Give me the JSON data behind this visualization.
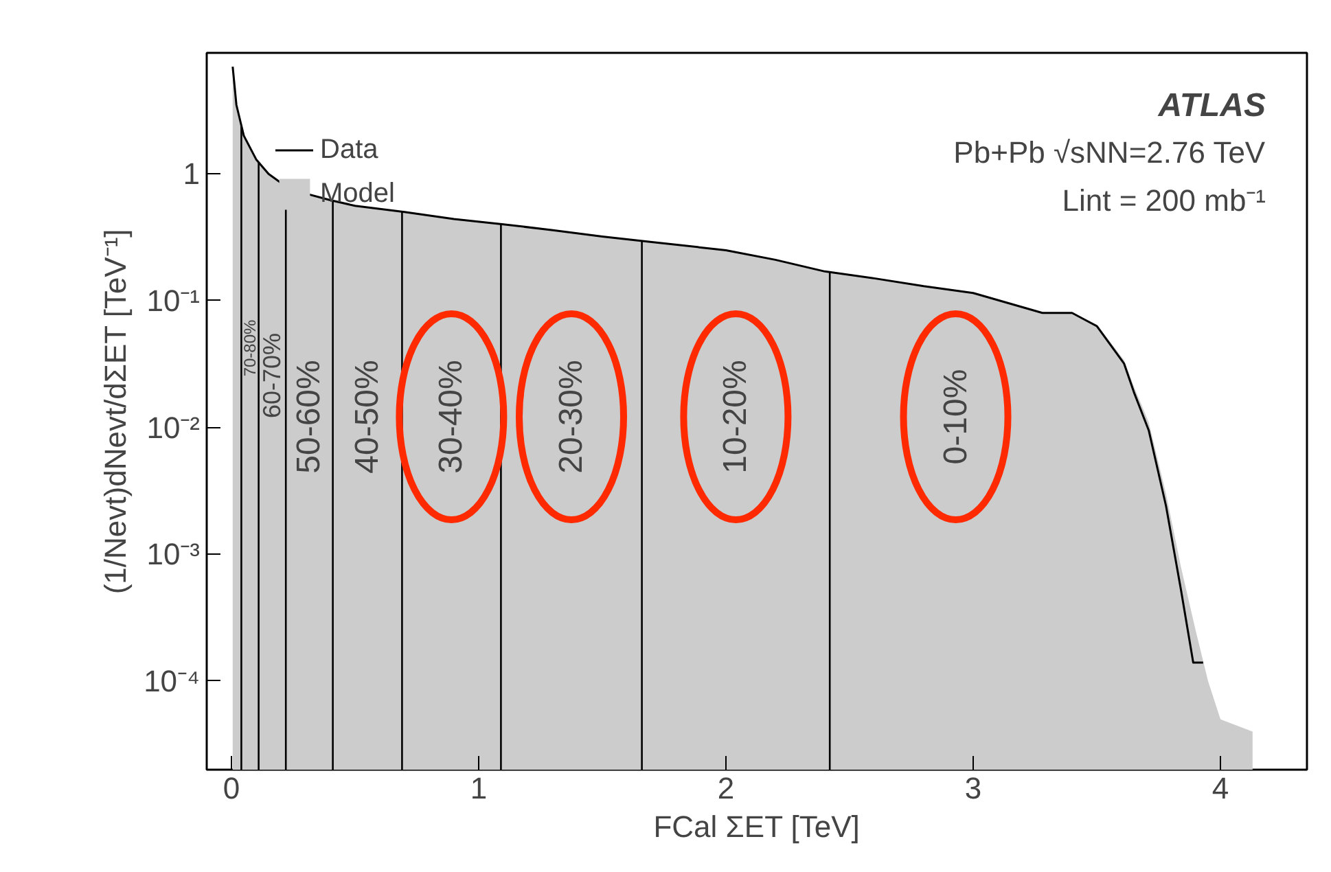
{
  "chart_data": {
    "type": "line",
    "xlabel": "FCal ΣET [TeV]",
    "ylabel": "(1/Nevt)dNevt/dΣET [TeV⁻¹]",
    "log": "y",
    "xlim": [
      -0.1,
      4.35
    ],
    "ylim": [
      2e-05,
      9
    ],
    "xticks": [
      0,
      1,
      2,
      3,
      4
    ],
    "yticks": [
      {
        "value": 0.0001,
        "label": "10⁻⁴"
      },
      {
        "value": 0.001,
        "label": "10⁻³"
      },
      {
        "value": 0.01,
        "label": "10⁻²"
      },
      {
        "value": 0.1,
        "label": "10⁻¹"
      },
      1
    ],
    "grid": false,
    "legend": "top left",
    "series": [
      {
        "name": "Model",
        "type": "area",
        "color": "#cccccc",
        "x": [
          0.005,
          0.02,
          0.05,
          0.1,
          0.15,
          0.2,
          0.3,
          0.4,
          0.5,
          0.7,
          0.9,
          1.1,
          1.3,
          1.5,
          1.7,
          2.0,
          2.2,
          2.4,
          2.6,
          2.8,
          3.0,
          3.28,
          3.4,
          3.5,
          3.61,
          3.65,
          3.71,
          3.78,
          3.84,
          3.9,
          3.95,
          4.0,
          4.13
        ],
        "values": [
          7,
          3.5,
          2.0,
          1.3,
          1.0,
          0.85,
          0.7,
          0.62,
          0.56,
          0.5,
          0.44,
          0.4,
          0.36,
          0.32,
          0.29,
          0.25,
          0.21,
          0.17,
          0.15,
          0.13,
          0.115,
          0.08,
          0.08,
          0.065,
          0.034,
          0.021,
          0.011,
          0.003,
          0.0008,
          0.00025,
          0.0001,
          5e-05,
          4e-05
        ]
      },
      {
        "name": "Data",
        "color": "#000000",
        "x": [
          0.005,
          0.02,
          0.05,
          0.1,
          0.15,
          0.2,
          0.3,
          0.4,
          0.5,
          0.7,
          0.9,
          1.1,
          1.3,
          1.5,
          1.7,
          2.0,
          2.2,
          2.4,
          2.6,
          2.8,
          3.0,
          3.28,
          3.4,
          3.5,
          3.61,
          3.65,
          3.71,
          3.78,
          3.84,
          3.89,
          3.93
        ],
        "values": [
          7,
          3.5,
          2.0,
          1.3,
          1.0,
          0.85,
          0.7,
          0.62,
          0.56,
          0.5,
          0.44,
          0.4,
          0.36,
          0.32,
          0.29,
          0.25,
          0.21,
          0.17,
          0.15,
          0.13,
          0.115,
          0.08,
          0.08,
          0.063,
          0.032,
          0.019,
          0.0095,
          0.0024,
          0.00053,
          0.00014,
          0.00014
        ]
      }
    ],
    "ref_lines": [
      {
        "axis": "x",
        "value": 0.04,
        "color": "#000000"
      },
      {
        "axis": "x",
        "value": 0.11,
        "color": "#000000"
      },
      {
        "axis": "x",
        "value": 0.22,
        "color": "#000000"
      },
      {
        "axis": "x",
        "value": 0.41,
        "color": "#000000"
      },
      {
        "axis": "x",
        "value": 0.69,
        "color": "#000000"
      },
      {
        "axis": "x",
        "value": 1.09,
        "color": "#000000"
      },
      {
        "axis": "x",
        "value": 1.66,
        "color": "#000000"
      },
      {
        "axis": "x",
        "value": 2.42,
        "color": "#000000"
      }
    ],
    "annotations": [
      "ATLAS",
      "Pb+Pb √sNN=2.76 TeV",
      "Lint = 200 mb⁻¹",
      "70-80%",
      "60-70%",
      "50-60%",
      "40-50%",
      "30-40%",
      "20-30%",
      "10-20%",
      "0-10%"
    ]
  }
}
